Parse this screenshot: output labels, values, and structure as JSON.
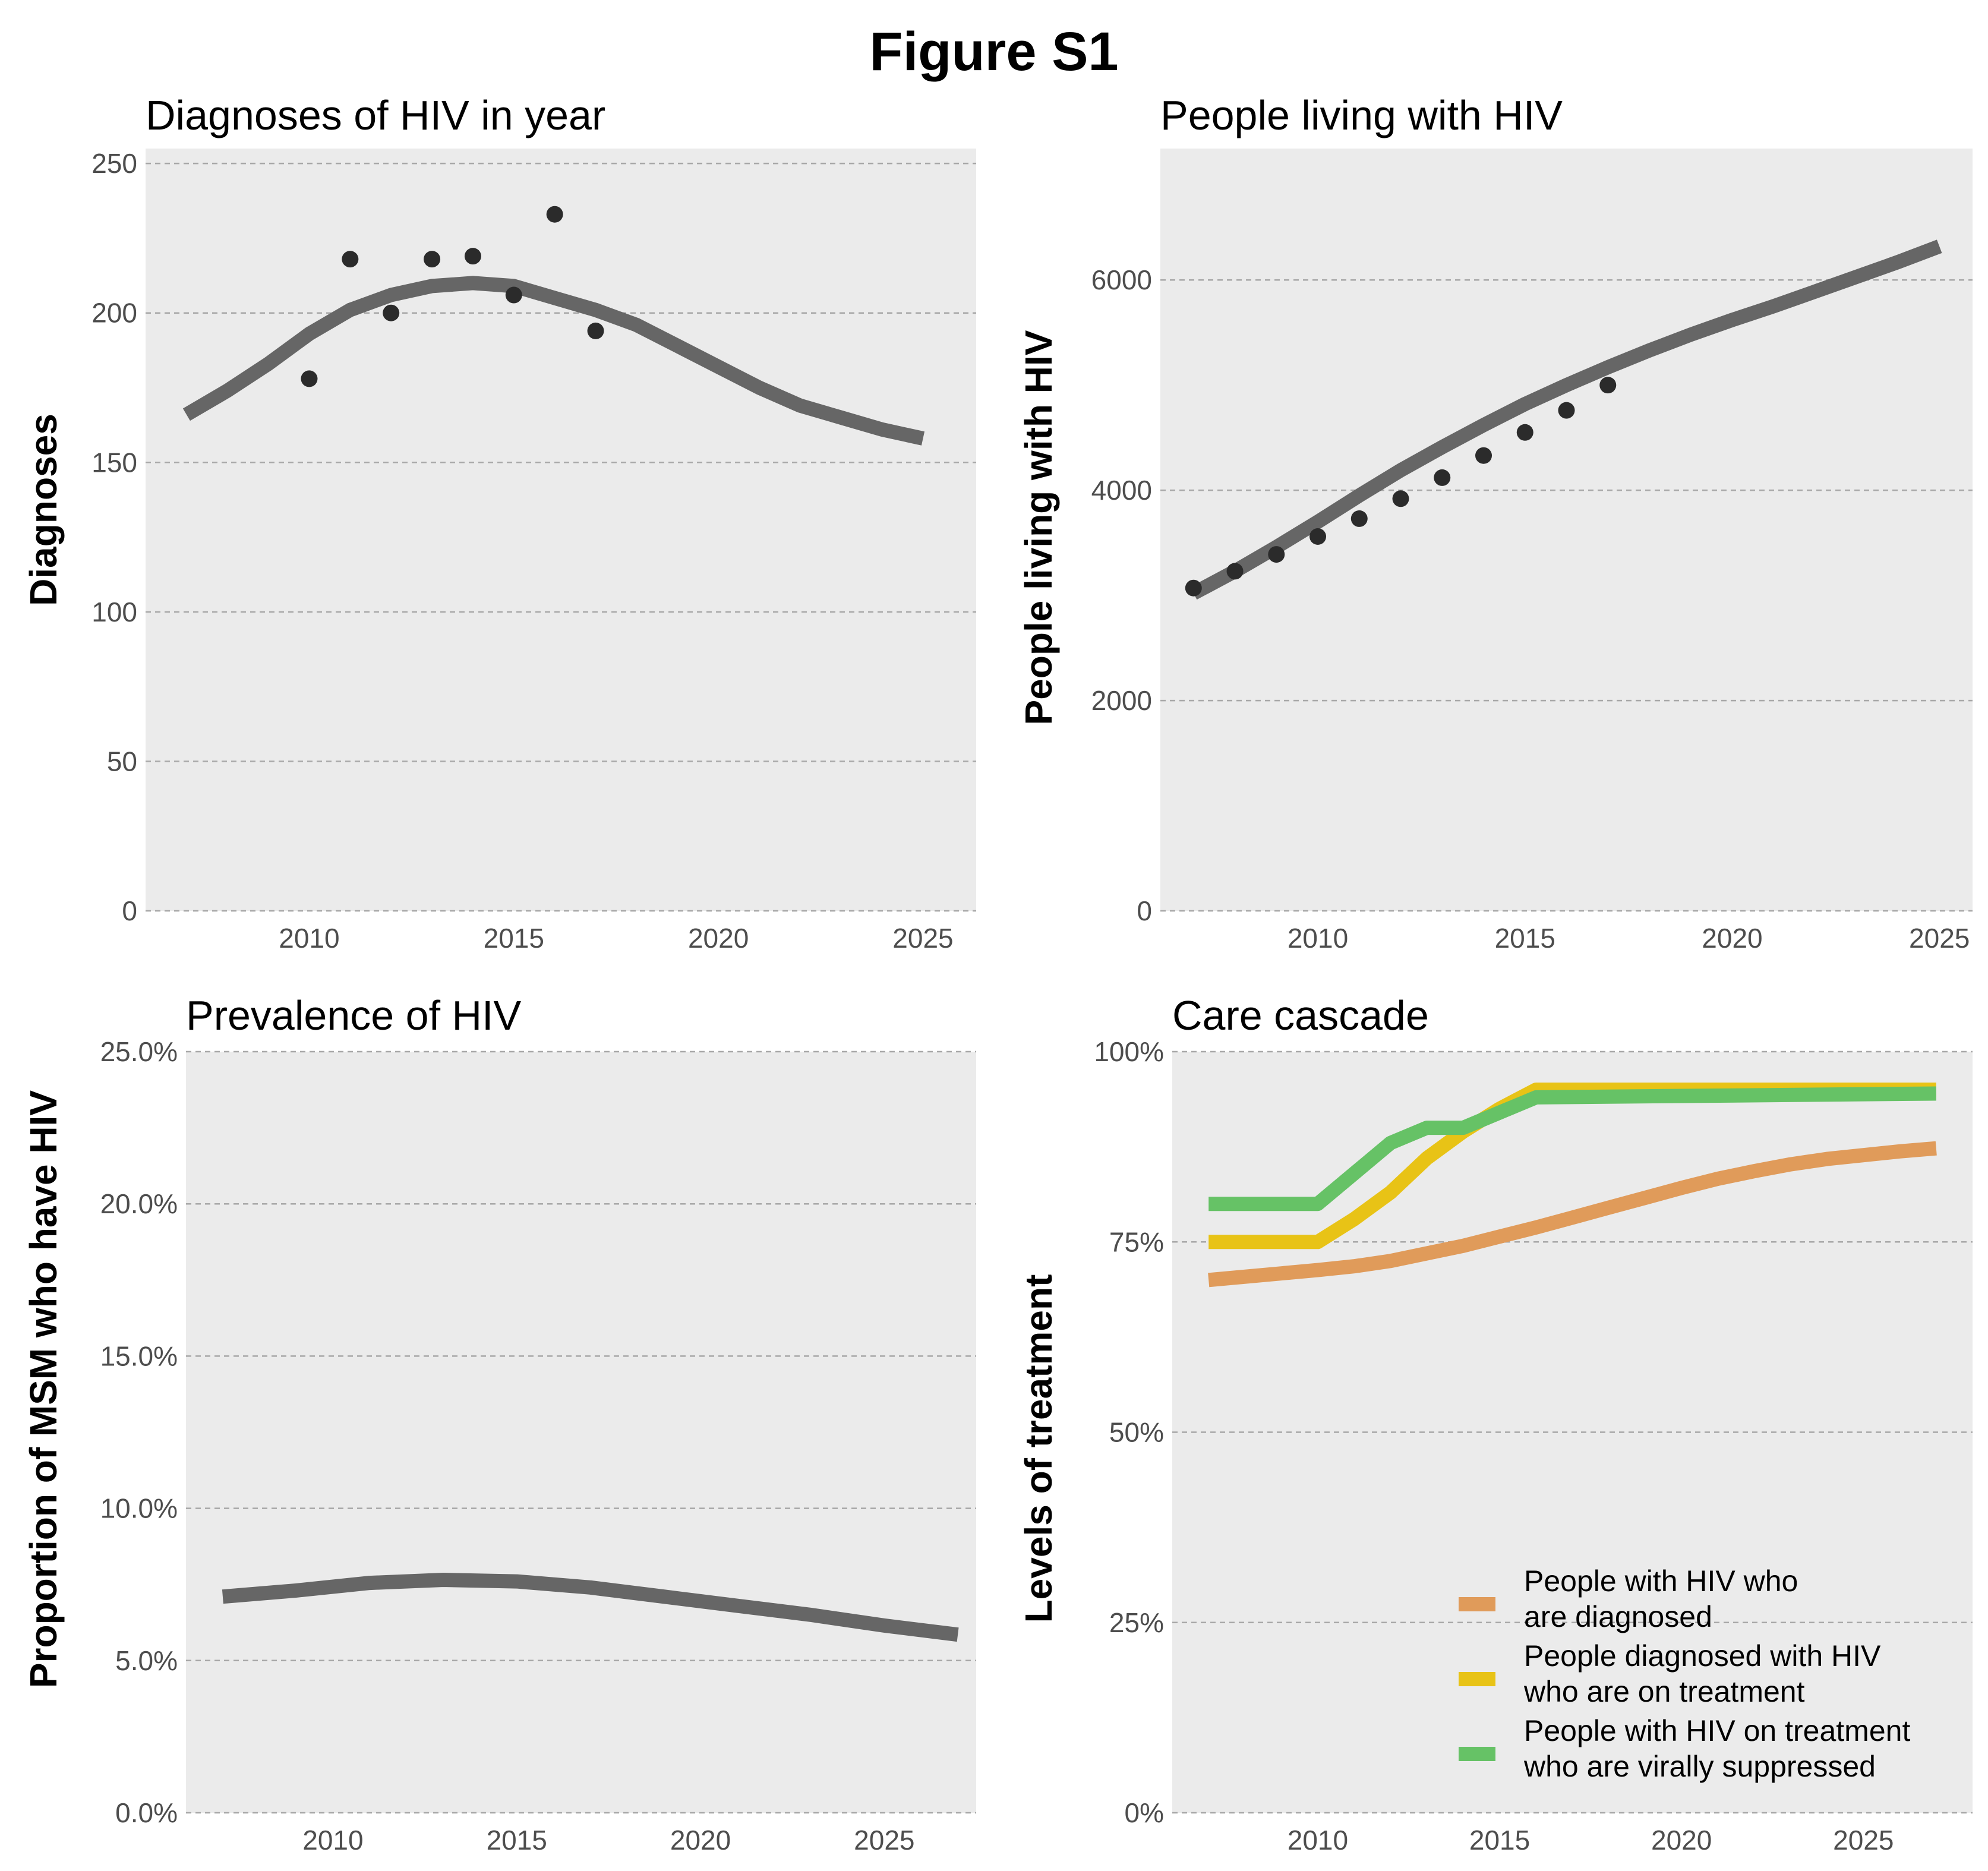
{
  "figure_title": "Figure S1",
  "chart_data": [
    {
      "type": "line",
      "title": "Diagnoses of HIV in year",
      "xlabel": "",
      "ylabel": "Diagnoses",
      "xlim": [
        2006,
        2026.3
      ],
      "ylim": [
        0,
        255
      ],
      "xticks": [
        2010,
        2015,
        2020,
        2025
      ],
      "yticks": [
        0,
        50,
        100,
        150,
        200,
        250
      ],
      "ytick_labels": [
        "0",
        "50",
        "100",
        "150",
        "200",
        "250"
      ],
      "grid": "horizontal dashed",
      "series": [
        {
          "kind": "line",
          "color": "#666666",
          "x": [
            2007,
            2008,
            2009,
            2010,
            2011,
            2012,
            2013,
            2014,
            2015,
            2016,
            2017,
            2018,
            2019,
            2020,
            2021,
            2022,
            2023,
            2024,
            2025
          ],
          "y": [
            166,
            174,
            183,
            193,
            201,
            206,
            209,
            210,
            209,
            205,
            201,
            196,
            189,
            182,
            175,
            169,
            165,
            161,
            158
          ]
        },
        {
          "kind": "points",
          "color": "#2b2b2b",
          "x": [
            2010,
            2011,
            2012,
            2013,
            2014,
            2015,
            2016,
            2017
          ],
          "y": [
            178,
            218,
            200,
            218,
            219,
            206,
            233,
            194
          ]
        }
      ]
    },
    {
      "type": "line",
      "title": "People living with HIV",
      "xlabel": "",
      "ylabel": "People living with HIV",
      "xlim": [
        2006.2,
        2025.8
      ],
      "ylim": [
        0,
        7250
      ],
      "xticks": [
        2010,
        2015,
        2020,
        2025
      ],
      "yticks": [
        0,
        2000,
        4000,
        6000
      ],
      "ytick_labels": [
        "0",
        "2000",
        "4000",
        "6000"
      ],
      "grid": "horizontal dashed",
      "series": [
        {
          "kind": "line",
          "color": "#666666",
          "x": [
            2007,
            2008,
            2009,
            2010,
            2011,
            2012,
            2013,
            2014,
            2015,
            2016,
            2017,
            2018,
            2019,
            2020,
            2021,
            2022,
            2023,
            2024,
            2025
          ],
          "y": [
            3020,
            3230,
            3460,
            3700,
            3950,
            4190,
            4410,
            4620,
            4820,
            5000,
            5170,
            5330,
            5480,
            5620,
            5750,
            5890,
            6030,
            6170,
            6320
          ]
        },
        {
          "kind": "points",
          "color": "#2b2b2b",
          "x": [
            2007,
            2008,
            2009,
            2010,
            2011,
            2012,
            2013,
            2014,
            2015,
            2016,
            2017
          ],
          "y": [
            3070,
            3230,
            3390,
            3560,
            3730,
            3920,
            4120,
            4330,
            4550,
            4760,
            5000
          ]
        }
      ]
    },
    {
      "type": "line",
      "title": "Prevalence of HIV",
      "xlabel": "",
      "ylabel": "Proportion of MSM who have HIV",
      "xlim": [
        2006,
        2027.5
      ],
      "ylim": [
        0,
        25
      ],
      "xticks": [
        2010,
        2015,
        2020,
        2025
      ],
      "yticks": [
        0,
        5,
        10,
        15,
        20,
        25
      ],
      "ytick_labels": [
        "0.0%",
        "5.0%",
        "10.0%",
        "15.0%",
        "20.0%",
        "25.0%"
      ],
      "grid": "horizontal dashed",
      "series": [
        {
          "kind": "line",
          "color": "#666666",
          "x": [
            2007,
            2009,
            2011,
            2013,
            2015,
            2017,
            2019,
            2021,
            2023,
            2025,
            2027
          ],
          "y": [
            7.1,
            7.3,
            7.55,
            7.65,
            7.6,
            7.4,
            7.1,
            6.8,
            6.5,
            6.15,
            5.85
          ]
        }
      ]
    },
    {
      "type": "line",
      "title": "Care cascade",
      "xlabel": "",
      "ylabel": "Levels of treatment",
      "xlim": [
        2006,
        2028
      ],
      "ylim": [
        0,
        100
      ],
      "xticks": [
        2010,
        2015,
        2020,
        2025
      ],
      "yticks": [
        0,
        25,
        50,
        75,
        100
      ],
      "ytick_labels": [
        "0%",
        "25%",
        "50%",
        "75%",
        "100%"
      ],
      "grid": "horizontal dashed",
      "legend_position": "bottom-right",
      "series": [
        {
          "name": "People with HIV who are diagnosed",
          "legend_lines": [
            "People with HIV who",
            "are diagnosed"
          ],
          "color": "#e09b5a",
          "x": [
            2007,
            2010,
            2011,
            2012,
            2013,
            2014,
            2015,
            2016,
            2017,
            2018,
            2019,
            2020,
            2021,
            2022,
            2023,
            2024,
            2025,
            2026,
            2027
          ],
          "y": [
            70,
            71.3,
            71.8,
            72.5,
            73.5,
            74.5,
            75.7,
            76.9,
            78.2,
            79.5,
            80.8,
            82.1,
            83.3,
            84.3,
            85.2,
            85.9,
            86.4,
            86.9,
            87.3
          ]
        },
        {
          "name": "People diagnosed with HIV who are on treatment",
          "legend_lines": [
            "People diagnosed with HIV",
            "who are on treatment"
          ],
          "color": "#e8c316",
          "x": [
            2007,
            2010,
            2011,
            2012,
            2013,
            2014,
            2015,
            2016,
            2027
          ],
          "y": [
            75,
            75,
            78,
            81.5,
            86,
            89.5,
            92.5,
            95,
            95
          ]
        },
        {
          "name": "People with HIV on treatment who are virally suppressed",
          "legend_lines": [
            "People with HIV on treatment",
            "who are virally suppressed"
          ],
          "color": "#66c266",
          "x": [
            2007,
            2010,
            2011,
            2012,
            2013,
            2014,
            2015,
            2016,
            2027
          ],
          "y": [
            80,
            80,
            84,
            88,
            90,
            90,
            92,
            94,
            94.5
          ]
        }
      ]
    }
  ]
}
